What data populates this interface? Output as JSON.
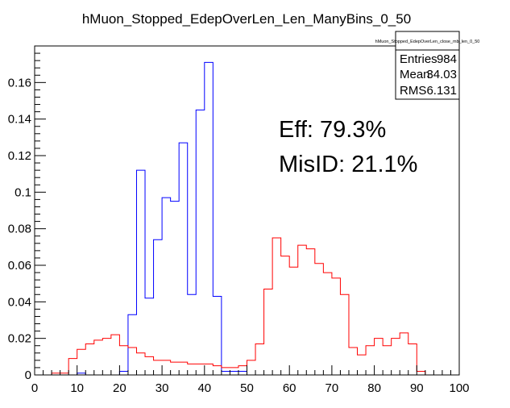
{
  "chart_data": {
    "type": "histogram",
    "title": "hMuon_Stopped_EdepOverLen_Len_ManyBins_0_50",
    "xlabel": "",
    "ylabel": "",
    "xlim": [
      0,
      100
    ],
    "ylim": [
      0,
      0.18
    ],
    "xticks": [
      0,
      10,
      20,
      30,
      40,
      50,
      60,
      70,
      80,
      90,
      100
    ],
    "yticks": [
      0,
      0.02,
      0.04,
      0.06,
      0.08,
      0.1,
      0.12,
      0.14,
      0.16
    ],
    "ytick_labels": [
      "0",
      "0.02",
      "0.04",
      "0.06",
      "0.08",
      "0.1",
      "0.12",
      "0.14",
      "0.16"
    ],
    "bin_width": 2,
    "grid": false,
    "series": [
      {
        "color": "#0000ff",
        "bin_starts": [
          0,
          2,
          4,
          6,
          8,
          10,
          12,
          14,
          16,
          18,
          20,
          22,
          24,
          26,
          28,
          30,
          32,
          34,
          36,
          38,
          40,
          42,
          44,
          46,
          48
        ],
        "values": [
          0,
          0,
          0,
          0,
          0,
          0.001,
          0,
          0,
          0,
          0,
          0.002,
          0.033,
          0.112,
          0.042,
          0.074,
          0.097,
          0.095,
          0.127,
          0.044,
          0.145,
          0.171,
          0.043,
          0.002,
          0.002,
          0.002
        ]
      },
      {
        "color": "#ff0000",
        "bin_starts": [
          0,
          2,
          4,
          6,
          8,
          10,
          12,
          14,
          16,
          18,
          20,
          22,
          24,
          26,
          28,
          30,
          32,
          34,
          36,
          38,
          40,
          42,
          44,
          46,
          48,
          50,
          52,
          54,
          56,
          58,
          60,
          62,
          64,
          66,
          68,
          70,
          72,
          74,
          76,
          78,
          80,
          82,
          84,
          86,
          88,
          90
        ],
        "values": [
          0,
          0,
          0.001,
          0.001,
          0.009,
          0.014,
          0.017,
          0.019,
          0.02,
          0.022,
          0.016,
          0.015,
          0.012,
          0.01,
          0.008,
          0.008,
          0.007,
          0.007,
          0.006,
          0.006,
          0.006,
          0.005,
          0.004,
          0.004,
          0.005,
          0.008,
          0.017,
          0.047,
          0.075,
          0.065,
          0.059,
          0.071,
          0.069,
          0.061,
          0.056,
          0.053,
          0.044,
          0.015,
          0.011,
          0.016,
          0.02,
          0.016,
          0.02,
          0.023,
          0.017,
          0.002
        ]
      }
    ],
    "stats_box": {
      "title": "hMuon_Stopped_EdepOverLen_close_mb_len_0_50",
      "rows": [
        {
          "key": "Entries",
          "value": "984"
        },
        {
          "key": "Mean",
          "value": "34.03"
        },
        {
          "key": "RMS",
          "value": "6.131"
        }
      ]
    },
    "annotations": [
      "Eff: 79.3%",
      "MisID: 21.1%"
    ]
  }
}
